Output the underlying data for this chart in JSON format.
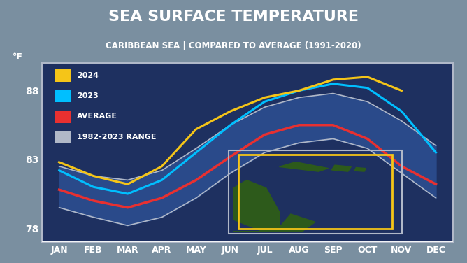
{
  "title": "SEA SURFACE TEMPERATURE",
  "subtitle": "CARIBBEAN SEA | COMPARED TO AVERAGE (1991-2020)",
  "ylabel": "°F",
  "yticks": [
    78,
    83,
    88
  ],
  "ylim": [
    77,
    90
  ],
  "months": [
    "JAN",
    "FEB",
    "MAR",
    "APR",
    "MAY",
    "JUN",
    "JUL",
    "AUG",
    "SEP",
    "OCT",
    "NOV",
    "DEC"
  ],
  "title_bg": "#1a2a5e",
  "subtitle_bg": "#2a3f7e",
  "plot_bg": "#1e3060",
  "fig_bg": "#7a8fa0",
  "range_upper": [
    82.5,
    81.8,
    81.5,
    82.2,
    83.8,
    85.5,
    86.8,
    87.5,
    87.8,
    87.2,
    85.8,
    84.0
  ],
  "range_lower": [
    79.5,
    78.8,
    78.2,
    78.8,
    80.2,
    82.0,
    83.5,
    84.2,
    84.5,
    83.8,
    82.0,
    80.2
  ],
  "avg": [
    80.8,
    80.0,
    79.5,
    80.2,
    81.5,
    83.2,
    84.8,
    85.5,
    85.5,
    84.5,
    82.5,
    81.2
  ],
  "y2023": [
    82.2,
    81.0,
    80.5,
    81.5,
    83.5,
    85.5,
    87.2,
    88.0,
    88.5,
    88.2,
    86.5,
    83.5
  ],
  "y2024": [
    82.8,
    81.8,
    81.2,
    82.5,
    85.2,
    86.5,
    87.5,
    88.0,
    88.8,
    89.0,
    88.0,
    null
  ],
  "color_2024": "#f5c518",
  "color_2023": "#00bfff",
  "color_avg": "#e83030",
  "color_range_fill": "#2a4a8a",
  "color_range_line": "#b0b8c8",
  "legend_labels": [
    "2024",
    "2023",
    "AVERAGE",
    "1982-2023 RANGE"
  ],
  "land_color": "#2d5a1b",
  "map_ocean": "#1e3060"
}
